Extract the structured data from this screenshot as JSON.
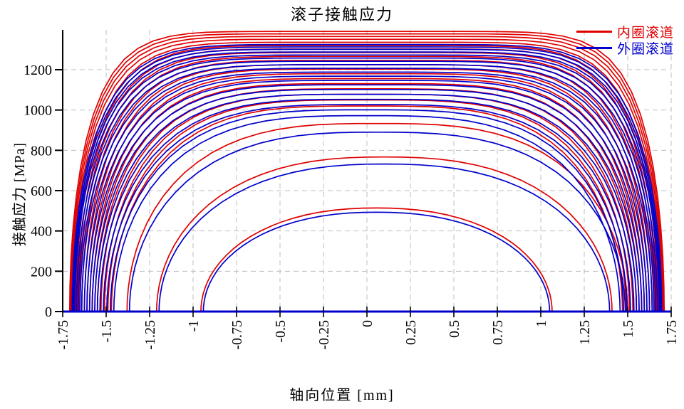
{
  "title": "滚子接触应力",
  "legend": {
    "items": [
      {
        "label": "内圈滚道",
        "color": "#e00000"
      },
      {
        "label": "外圈滚道",
        "color": "#0000cc"
      }
    ]
  },
  "axes": {
    "x": {
      "label": "轴向位置 [mm]",
      "tick_labels": [
        "-1.75",
        "-1.5",
        "-1.25",
        "-1",
        "-0.75",
        "-0.5",
        "-0.25",
        "0",
        "0.25",
        "0.5",
        "0.75",
        "1",
        "1.25",
        "1.5",
        "1.75"
      ],
      "tick_values": [
        -1.75,
        -1.5,
        -1.25,
        -1,
        -0.75,
        -0.5,
        -0.25,
        0,
        0.25,
        0.5,
        0.75,
        1,
        1.25,
        1.5,
        1.75
      ]
    },
    "y": {
      "label": "接触应力 [MPa]",
      "tick_labels": [
        "0",
        "200",
        "400",
        "600",
        "800",
        "1000",
        "1200"
      ],
      "tick_values": [
        0,
        200,
        400,
        600,
        800,
        1000,
        1200
      ]
    }
  },
  "colors": {
    "inner": "#e00000",
    "outer": "#0000cc",
    "grid": "#bfbfbf",
    "x_axis_line": "#0000cc",
    "y_axis_line": "#000000",
    "tick": "#000000",
    "background": "#ffffff"
  },
  "chart_data": {
    "type": "line",
    "title": "滚子接触应力",
    "xlabel": "轴向位置 [mm]",
    "ylabel": "接触应力 [MPa]",
    "xlim": [
      -1.75,
      1.75
    ],
    "ylim": [
      0,
      1400
    ],
    "x_ticks": [
      -1.75,
      -1.5,
      -1.25,
      -1,
      -0.75,
      -0.5,
      -0.25,
      0,
      0.25,
      0.5,
      0.75,
      1,
      1.25,
      1.5,
      1.75
    ],
    "y_ticks": [
      0,
      200,
      400,
      600,
      800,
      1000,
      1200
    ],
    "grid": "dashed",
    "legend_position": "top-right",
    "series": [
      {
        "name": "内圈滚道",
        "role": "inner",
        "color": "#e00000"
      },
      {
        "name": "外圈滚道",
        "role": "outer",
        "color": "#0000cc"
      }
    ],
    "profile_model": "Each roller contributes one inner (red) and one outer (blue) dome curve: stress(x) = peak * (1 - (|x-center|/half_span)^n)^0.5 for |x-center| <= half_span, else 0, with flatness n = 2.2 + 6*(peak/1390)^5; stress in MPa, x in mm",
    "rollers": [
      {
        "inner_peak": 1390,
        "outer_peak": 1325,
        "half_span": 1.71,
        "center": 0
      },
      {
        "inner_peak": 1378,
        "outer_peak": 1313,
        "half_span": 1.705,
        "center": 0
      },
      {
        "inner_peak": 1365,
        "outer_peak": 1301,
        "half_span": 1.7,
        "center": 0
      },
      {
        "inner_peak": 1351,
        "outer_peak": 1288,
        "half_span": 1.695,
        "center": 0
      },
      {
        "inner_peak": 1336,
        "outer_peak": 1273,
        "half_span": 1.685,
        "center": 0
      },
      {
        "inner_peak": 1320,
        "outer_peak": 1258,
        "half_span": 1.675,
        "center": 0
      },
      {
        "inner_peak": 1303,
        "outer_peak": 1242,
        "half_span": 1.665,
        "center": 0
      },
      {
        "inner_peak": 1285,
        "outer_peak": 1225,
        "half_span": 1.655,
        "center": 0
      },
      {
        "inner_peak": 1266,
        "outer_peak": 1207,
        "half_span": 1.64,
        "center": 0
      },
      {
        "inner_peak": 1246,
        "outer_peak": 1188,
        "half_span": 1.625,
        "center": 0
      },
      {
        "inner_peak": 1225,
        "outer_peak": 1168,
        "half_span": 1.61,
        "center": 0
      },
      {
        "inner_peak": 1203,
        "outer_peak": 1147,
        "half_span": 1.595,
        "center": 0
      },
      {
        "inner_peak": 1180,
        "outer_peak": 1125,
        "half_span": 1.58,
        "center": 0
      },
      {
        "inner_peak": 1156,
        "outer_peak": 1102,
        "half_span": 1.565,
        "center": 0
      },
      {
        "inner_peak": 1131,
        "outer_peak": 1078,
        "half_span": 1.55,
        "center": 0
      },
      {
        "inner_peak": 1105,
        "outer_peak": 1053,
        "half_span": 1.53,
        "center": 0
      },
      {
        "inner_peak": 1078,
        "outer_peak": 1027,
        "half_span": 1.51,
        "center": 0
      },
      {
        "inner_peak": 1050,
        "outer_peak": 1001,
        "half_span": 1.49,
        "center": 0
      },
      {
        "inner_peak": 1020,
        "outer_peak": 972,
        "half_span": 1.47,
        "center": 0
      },
      {
        "inner_peak": 933,
        "outer_peak": 890,
        "half_span": 1.44,
        "center": 0.06
      },
      {
        "inner_peak": 767,
        "outer_peak": 732,
        "half_span": 1.31,
        "center": 0.1
      },
      {
        "inner_peak": 514,
        "outer_peak": 493,
        "half_span": 1.01,
        "center": 0.055
      }
    ]
  }
}
